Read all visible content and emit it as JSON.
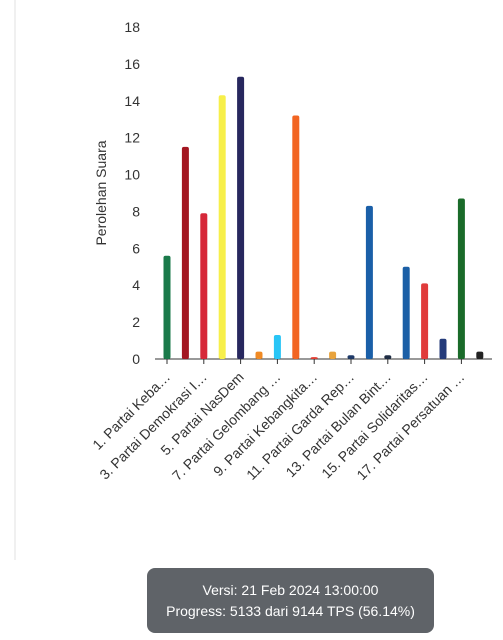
{
  "chart_data": {
    "type": "bar",
    "y_label": "Perolehan Suara",
    "categories": [
      "1. Partai Keba…",
      null,
      "3. Partai Demokrasi I…",
      null,
      "5. Partai NasDem",
      null,
      "7. Partai Gelombang …",
      null,
      "9. Partai Kebangkita…",
      null,
      "11. Partai Garda Rep…",
      null,
      "13. Partai Bulan Bint…",
      null,
      "15. Partai Solidaritas…",
      null,
      "17. Partai Persatuan …",
      null
    ],
    "values": [
      5.6,
      11.5,
      7.9,
      14.3,
      15.3,
      0.4,
      1.3,
      13.2,
      0.1,
      0.4,
      0.2,
      8.3,
      0.2,
      5.0,
      4.1,
      1.1,
      8.7,
      0.4
    ],
    "colors": [
      "#1a7a4a",
      "#a31621",
      "#d62839",
      "#f7ef4a",
      "#27275e",
      "#f08a24",
      "#29c5f6",
      "#f26522",
      "#e03c31",
      "#e8a33c",
      "#1f3a68",
      "#1a5fa8",
      "#1f2d44",
      "#1b5fa6",
      "#e03b3b",
      "#243b7a",
      "#1a6b2a",
      "#222222"
    ],
    "ylim": [
      0,
      18
    ],
    "yticks": [
      0,
      2,
      4,
      6,
      8,
      10,
      12,
      14,
      16,
      18
    ],
    "grid": false
  },
  "footer": {
    "version": "Versi: 21 Feb 2024 13:00:00",
    "progress": "Progress: 5133 dari 9144 TPS (56.14%)"
  }
}
